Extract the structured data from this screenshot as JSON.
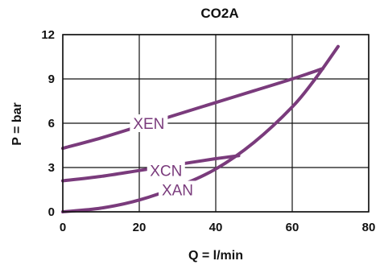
{
  "chart_data": {
    "type": "line",
    "title": "CO2A",
    "xlabel": "Q = l/min",
    "ylabel": "P = bar",
    "xlim": [
      0,
      80
    ],
    "ylim": [
      0,
      12
    ],
    "x_ticks": [
      0,
      20,
      40,
      60,
      80
    ],
    "y_ticks": [
      0,
      3,
      6,
      9,
      12
    ],
    "x_tick_labels": [
      "0",
      "20",
      "40",
      "60",
      "80"
    ],
    "y_tick_labels": [
      "0",
      "3",
      "6",
      "9",
      "12"
    ],
    "grid": true,
    "line_color": "#7a3b7c",
    "series": [
      {
        "name": "XEN",
        "x": [
          0,
          10,
          20,
          30,
          40,
          50,
          60,
          68
        ],
        "y": [
          4.3,
          5.0,
          5.8,
          6.6,
          7.4,
          8.2,
          9.0,
          9.7
        ]
      },
      {
        "name": "XCN",
        "x": [
          0,
          10,
          20,
          30,
          40,
          46
        ],
        "y": [
          2.1,
          2.4,
          2.8,
          3.2,
          3.6,
          3.8
        ]
      },
      {
        "name": "XAN",
        "x": [
          0,
          10,
          20,
          30,
          40,
          50,
          60,
          66,
          72
        ],
        "y": [
          0,
          0.25,
          0.8,
          1.7,
          2.9,
          4.7,
          7.1,
          9.0,
          11.2
        ]
      }
    ]
  }
}
